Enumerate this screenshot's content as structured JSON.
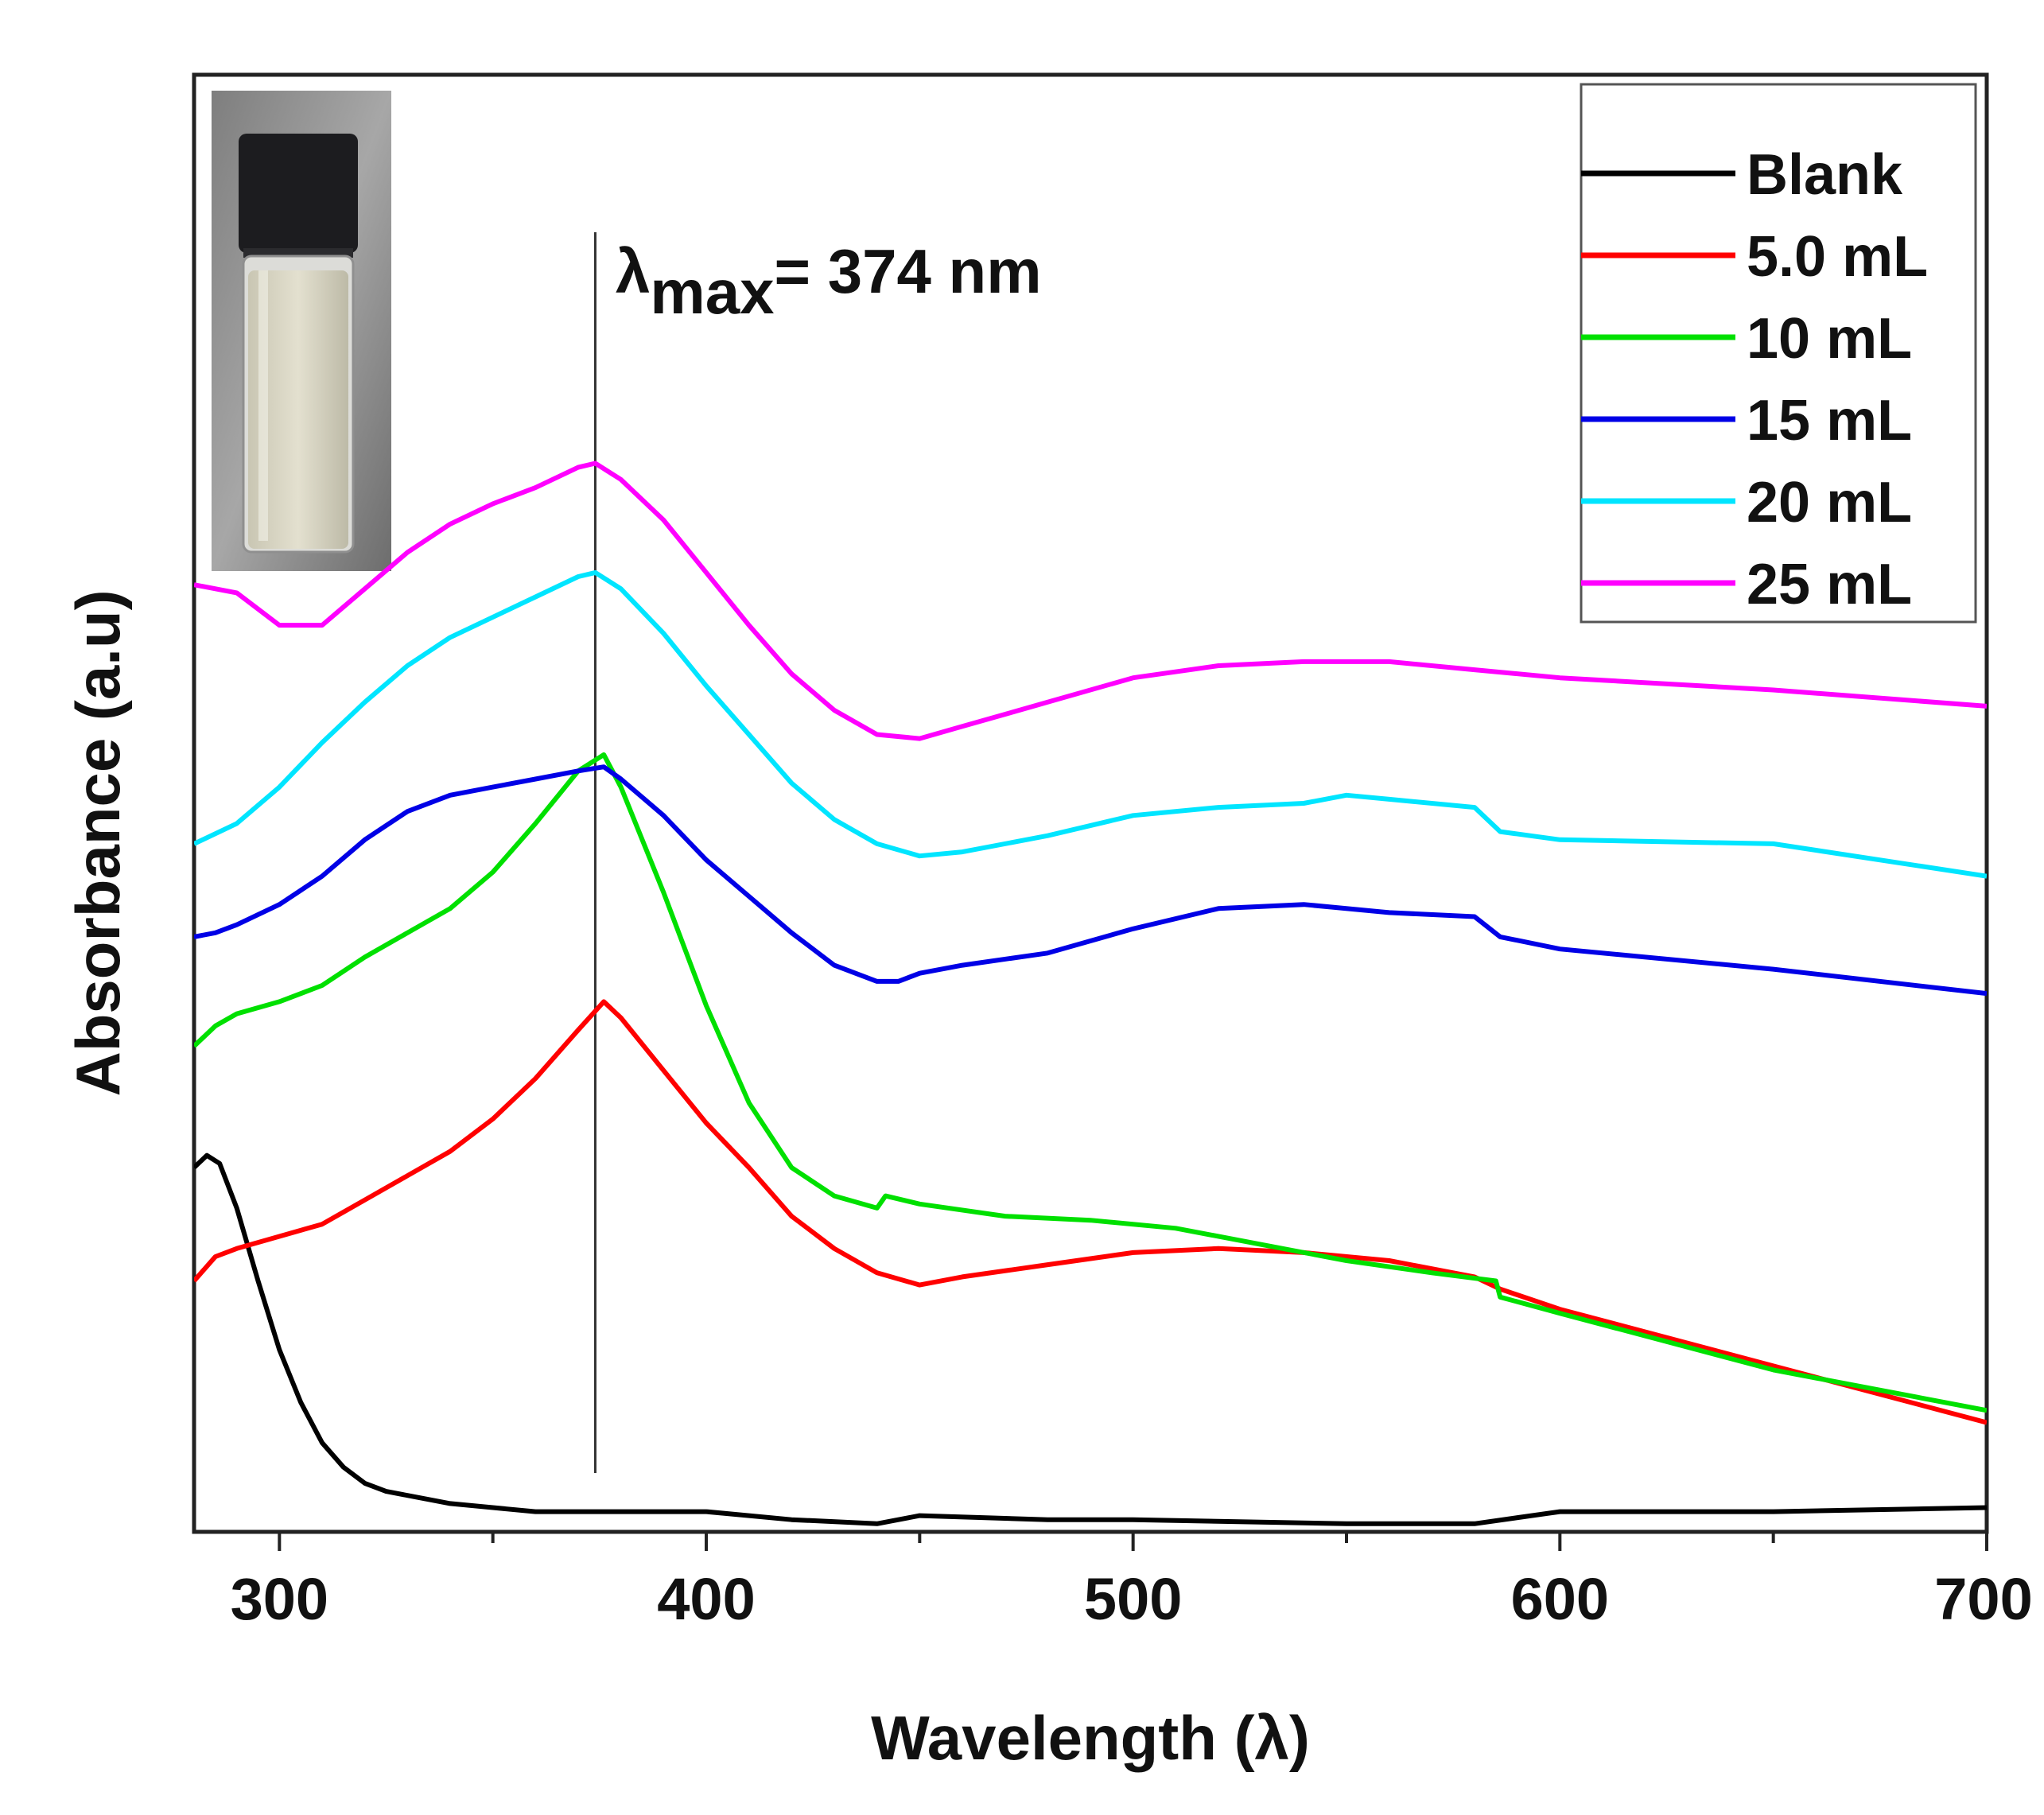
{
  "chart_data": {
    "type": "line",
    "title": "",
    "xlabel": "Wavelength (λ)",
    "ylabel": "Absorbance (a.u)",
    "xlim": [
      280,
      700
    ],
    "ylim": [
      0,
      3.6
    ],
    "y_ticks_labeled": false,
    "x_ticks": [
      300,
      400,
      500,
      600,
      700
    ],
    "x_minor_ticks": [
      350,
      450,
      550,
      650
    ],
    "annotation": {
      "prefix": "λ",
      "subscript": "max",
      "value_text": "= 374 nm",
      "x": 374
    },
    "inset": {
      "description": "vial-photo"
    },
    "legend": {
      "position": "top-right",
      "entries": [
        "Blank",
        "5.0 mL",
        "10 mL",
        "15 mL",
        "20 mL",
        "25 mL"
      ]
    },
    "colors": {
      "Blank": "#000000",
      "5.0 mL": "#ff0000",
      "10 mL": "#00e000",
      "15 mL": "#0000e6",
      "20 mL": "#00e5ff",
      "25 mL": "#ff00ff"
    },
    "series": [
      {
        "name": "Blank",
        "x": [
          280,
          283,
          286,
          290,
          295,
          300,
          305,
          310,
          315,
          320,
          325,
          330,
          340,
          350,
          360,
          370,
          380,
          400,
          420,
          440,
          450,
          480,
          500,
          550,
          580,
          600,
          650,
          700
        ],
        "y": [
          0.9,
          0.93,
          0.91,
          0.8,
          0.62,
          0.45,
          0.32,
          0.22,
          0.16,
          0.12,
          0.1,
          0.09,
          0.07,
          0.06,
          0.05,
          0.05,
          0.05,
          0.05,
          0.03,
          0.02,
          0.04,
          0.03,
          0.03,
          0.02,
          0.02,
          0.05,
          0.05,
          0.06
        ]
      },
      {
        "name": "5.0 mL",
        "x": [
          280,
          285,
          290,
          300,
          310,
          320,
          330,
          340,
          350,
          360,
          370,
          376,
          380,
          390,
          400,
          410,
          420,
          430,
          440,
          450,
          460,
          480,
          500,
          520,
          540,
          560,
          580,
          586,
          600,
          650,
          700
        ],
        "y": [
          0.62,
          0.68,
          0.7,
          0.73,
          0.76,
          0.82,
          0.88,
          0.94,
          1.02,
          1.12,
          1.24,
          1.31,
          1.27,
          1.14,
          1.01,
          0.9,
          0.78,
          0.7,
          0.64,
          0.61,
          0.63,
          0.66,
          0.69,
          0.7,
          0.69,
          0.67,
          0.63,
          0.6,
          0.55,
          0.41,
          0.27
        ]
      },
      {
        "name": "10 mL",
        "x": [
          280,
          285,
          290,
          300,
          310,
          320,
          330,
          340,
          350,
          360,
          370,
          376,
          380,
          390,
          400,
          410,
          420,
          430,
          440,
          442,
          450,
          470,
          490,
          510,
          530,
          550,
          570,
          585,
          586,
          600,
          650,
          700
        ],
        "y": [
          1.2,
          1.25,
          1.28,
          1.31,
          1.35,
          1.42,
          1.48,
          1.54,
          1.63,
          1.75,
          1.88,
          1.92,
          1.84,
          1.58,
          1.3,
          1.06,
          0.9,
          0.83,
          0.8,
          0.83,
          0.81,
          0.78,
          0.77,
          0.75,
          0.71,
          0.67,
          0.64,
          0.62,
          0.58,
          0.54,
          0.4,
          0.3
        ]
      },
      {
        "name": "15 mL",
        "x": [
          280,
          285,
          290,
          300,
          310,
          320,
          330,
          340,
          350,
          360,
          370,
          376,
          380,
          390,
          400,
          410,
          420,
          430,
          440,
          445,
          450,
          460,
          480,
          500,
          520,
          540,
          560,
          580,
          586,
          600,
          650,
          700
        ],
        "y": [
          1.47,
          1.48,
          1.5,
          1.55,
          1.62,
          1.71,
          1.78,
          1.82,
          1.84,
          1.86,
          1.88,
          1.89,
          1.86,
          1.77,
          1.66,
          1.57,
          1.48,
          1.4,
          1.36,
          1.36,
          1.38,
          1.4,
          1.43,
          1.49,
          1.54,
          1.55,
          1.53,
          1.52,
          1.47,
          1.44,
          1.39,
          1.33
        ]
      },
      {
        "name": "20 mL",
        "x": [
          280,
          290,
          300,
          310,
          320,
          330,
          340,
          350,
          360,
          370,
          374,
          380,
          390,
          400,
          410,
          420,
          430,
          440,
          450,
          460,
          480,
          500,
          520,
          540,
          550,
          560,
          580,
          586,
          600,
          650,
          700
        ],
        "y": [
          1.7,
          1.75,
          1.84,
          1.95,
          2.05,
          2.14,
          2.21,
          2.26,
          2.31,
          2.36,
          2.37,
          2.33,
          2.22,
          2.09,
          1.97,
          1.85,
          1.76,
          1.7,
          1.67,
          1.68,
          1.72,
          1.77,
          1.79,
          1.8,
          1.82,
          1.81,
          1.79,
          1.73,
          1.71,
          1.7,
          1.62
        ]
      },
      {
        "name": "25 mL",
        "x": [
          280,
          290,
          300,
          310,
          320,
          330,
          340,
          350,
          360,
          370,
          374,
          380,
          390,
          400,
          410,
          420,
          430,
          440,
          450,
          460,
          480,
          500,
          520,
          540,
          560,
          580,
          600,
          650,
          700
        ],
        "y": [
          2.34,
          2.32,
          2.24,
          2.24,
          2.33,
          2.42,
          2.49,
          2.54,
          2.58,
          2.63,
          2.64,
          2.6,
          2.5,
          2.37,
          2.24,
          2.12,
          2.03,
          1.97,
          1.96,
          1.99,
          2.05,
          2.11,
          2.14,
          2.15,
          2.15,
          2.13,
          2.11,
          2.08,
          2.04
        ]
      }
    ]
  }
}
